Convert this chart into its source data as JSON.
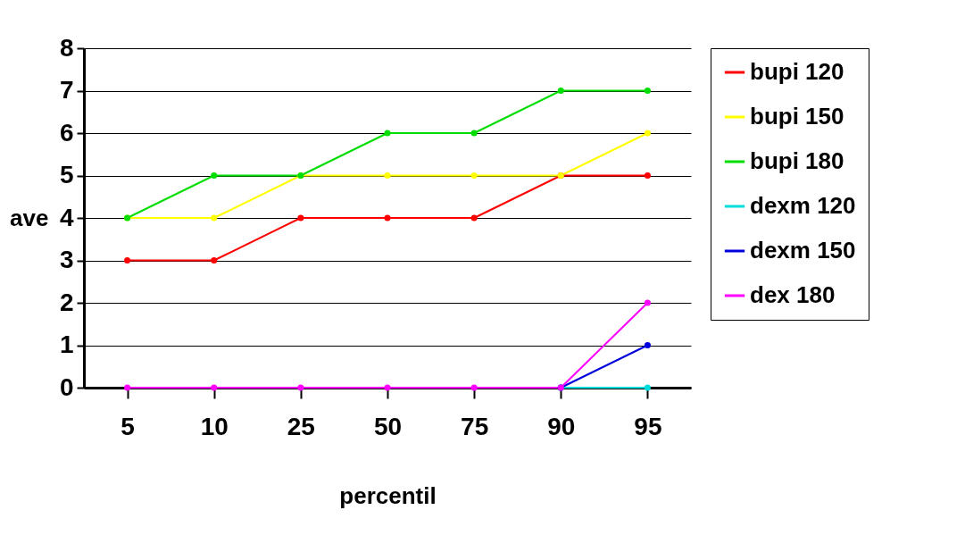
{
  "chart_data": {
    "type": "line",
    "xlabel": "percentil",
    "ylabel": "ave",
    "categories": [
      "5",
      "10",
      "25",
      "50",
      "75",
      "90",
      "95"
    ],
    "series": [
      {
        "name": "bupi 120",
        "color": "#ff0000",
        "values": [
          3,
          3,
          4,
          4,
          4,
          5,
          5
        ]
      },
      {
        "name": "bupi 150",
        "color": "#ffff00",
        "values": [
          4,
          4,
          5,
          5,
          5,
          5,
          6
        ]
      },
      {
        "name": "bupi 180",
        "color": "#00dd00",
        "values": [
          4,
          5,
          5,
          6,
          6,
          7,
          7
        ]
      },
      {
        "name": "dexm 120",
        "color": "#00dddd",
        "values": [
          null,
          null,
          null,
          null,
          null,
          0,
          0
        ]
      },
      {
        "name": "dexm 150",
        "color": "#0000dd",
        "values": [
          null,
          null,
          null,
          null,
          null,
          0,
          1
        ]
      },
      {
        "name": "dex 180",
        "color": "#ff00ff",
        "values": [
          0,
          0,
          0,
          0,
          0,
          0,
          2
        ]
      }
    ],
    "ylim": [
      0,
      8
    ],
    "yticks": [
      0,
      1,
      2,
      3,
      4,
      5,
      6,
      7,
      8
    ],
    "grid": "y",
    "legend": "right",
    "marker": "circle"
  }
}
